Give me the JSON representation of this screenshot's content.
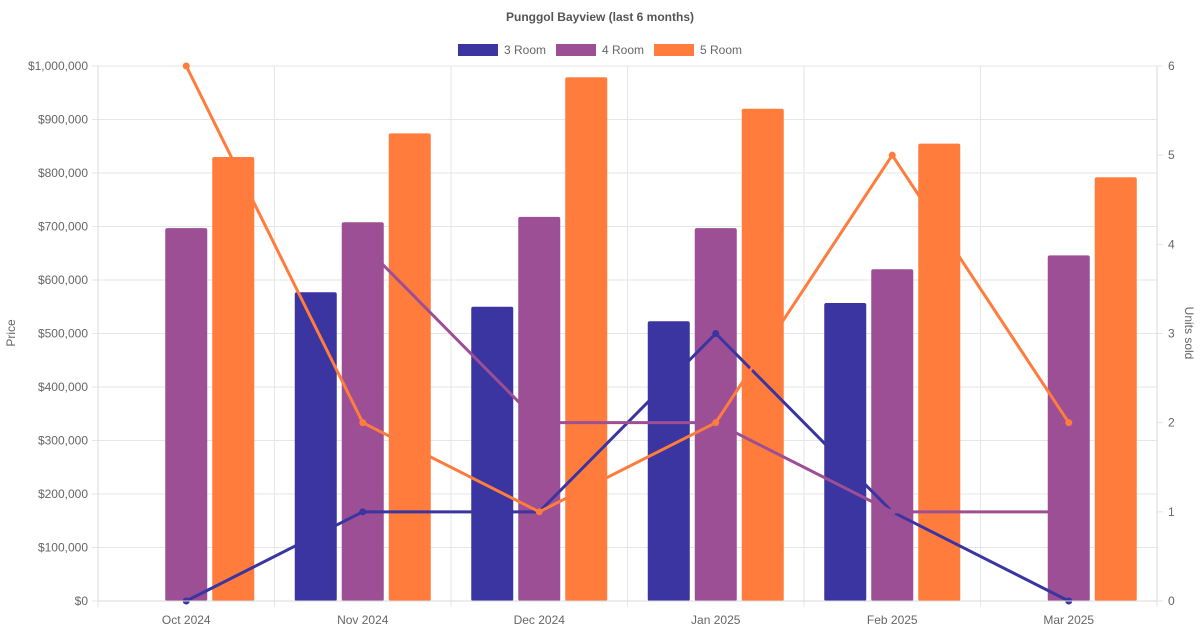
{
  "chart_data": {
    "type": "bar",
    "title": "Punggol Bayview (last 6 months)",
    "categories": [
      "Oct 2024",
      "Nov 2024",
      "Dec 2024",
      "Jan 2025",
      "Feb 2025",
      "Mar 2025"
    ],
    "ylabel": "Price",
    "y2label": "Units sold",
    "ylim": [
      0,
      1000000
    ],
    "y2lim": [
      0,
      6
    ],
    "yticks": [
      "$0",
      "$100,000",
      "$200,000",
      "$300,000",
      "$400,000",
      "$500,000",
      "$600,000",
      "$700,000",
      "$800,000",
      "$900,000",
      "$1,000,000"
    ],
    "y2ticks": [
      "0",
      "1",
      "2",
      "3",
      "4",
      "5",
      "6"
    ],
    "legend_position": "top-center",
    "grid": true,
    "series": [
      {
        "name": "3 Room",
        "color": "#3a35a0",
        "price": [
          null,
          577000,
          550000,
          523000,
          557000,
          null
        ],
        "units": [
          0,
          1,
          1,
          3,
          1,
          0
        ]
      },
      {
        "name": "4 Room",
        "color": "#9c4f94",
        "price": [
          697000,
          708000,
          718000,
          697000,
          620000,
          646000
        ],
        "units": [
          null,
          4,
          2,
          2,
          1,
          1
        ]
      },
      {
        "name": "5 Room",
        "color": "#ff7c3d",
        "price": [
          830000,
          874000,
          979000,
          920000,
          855000,
          792000
        ],
        "units": [
          6,
          2,
          1,
          2,
          5,
          2
        ]
      }
    ]
  }
}
